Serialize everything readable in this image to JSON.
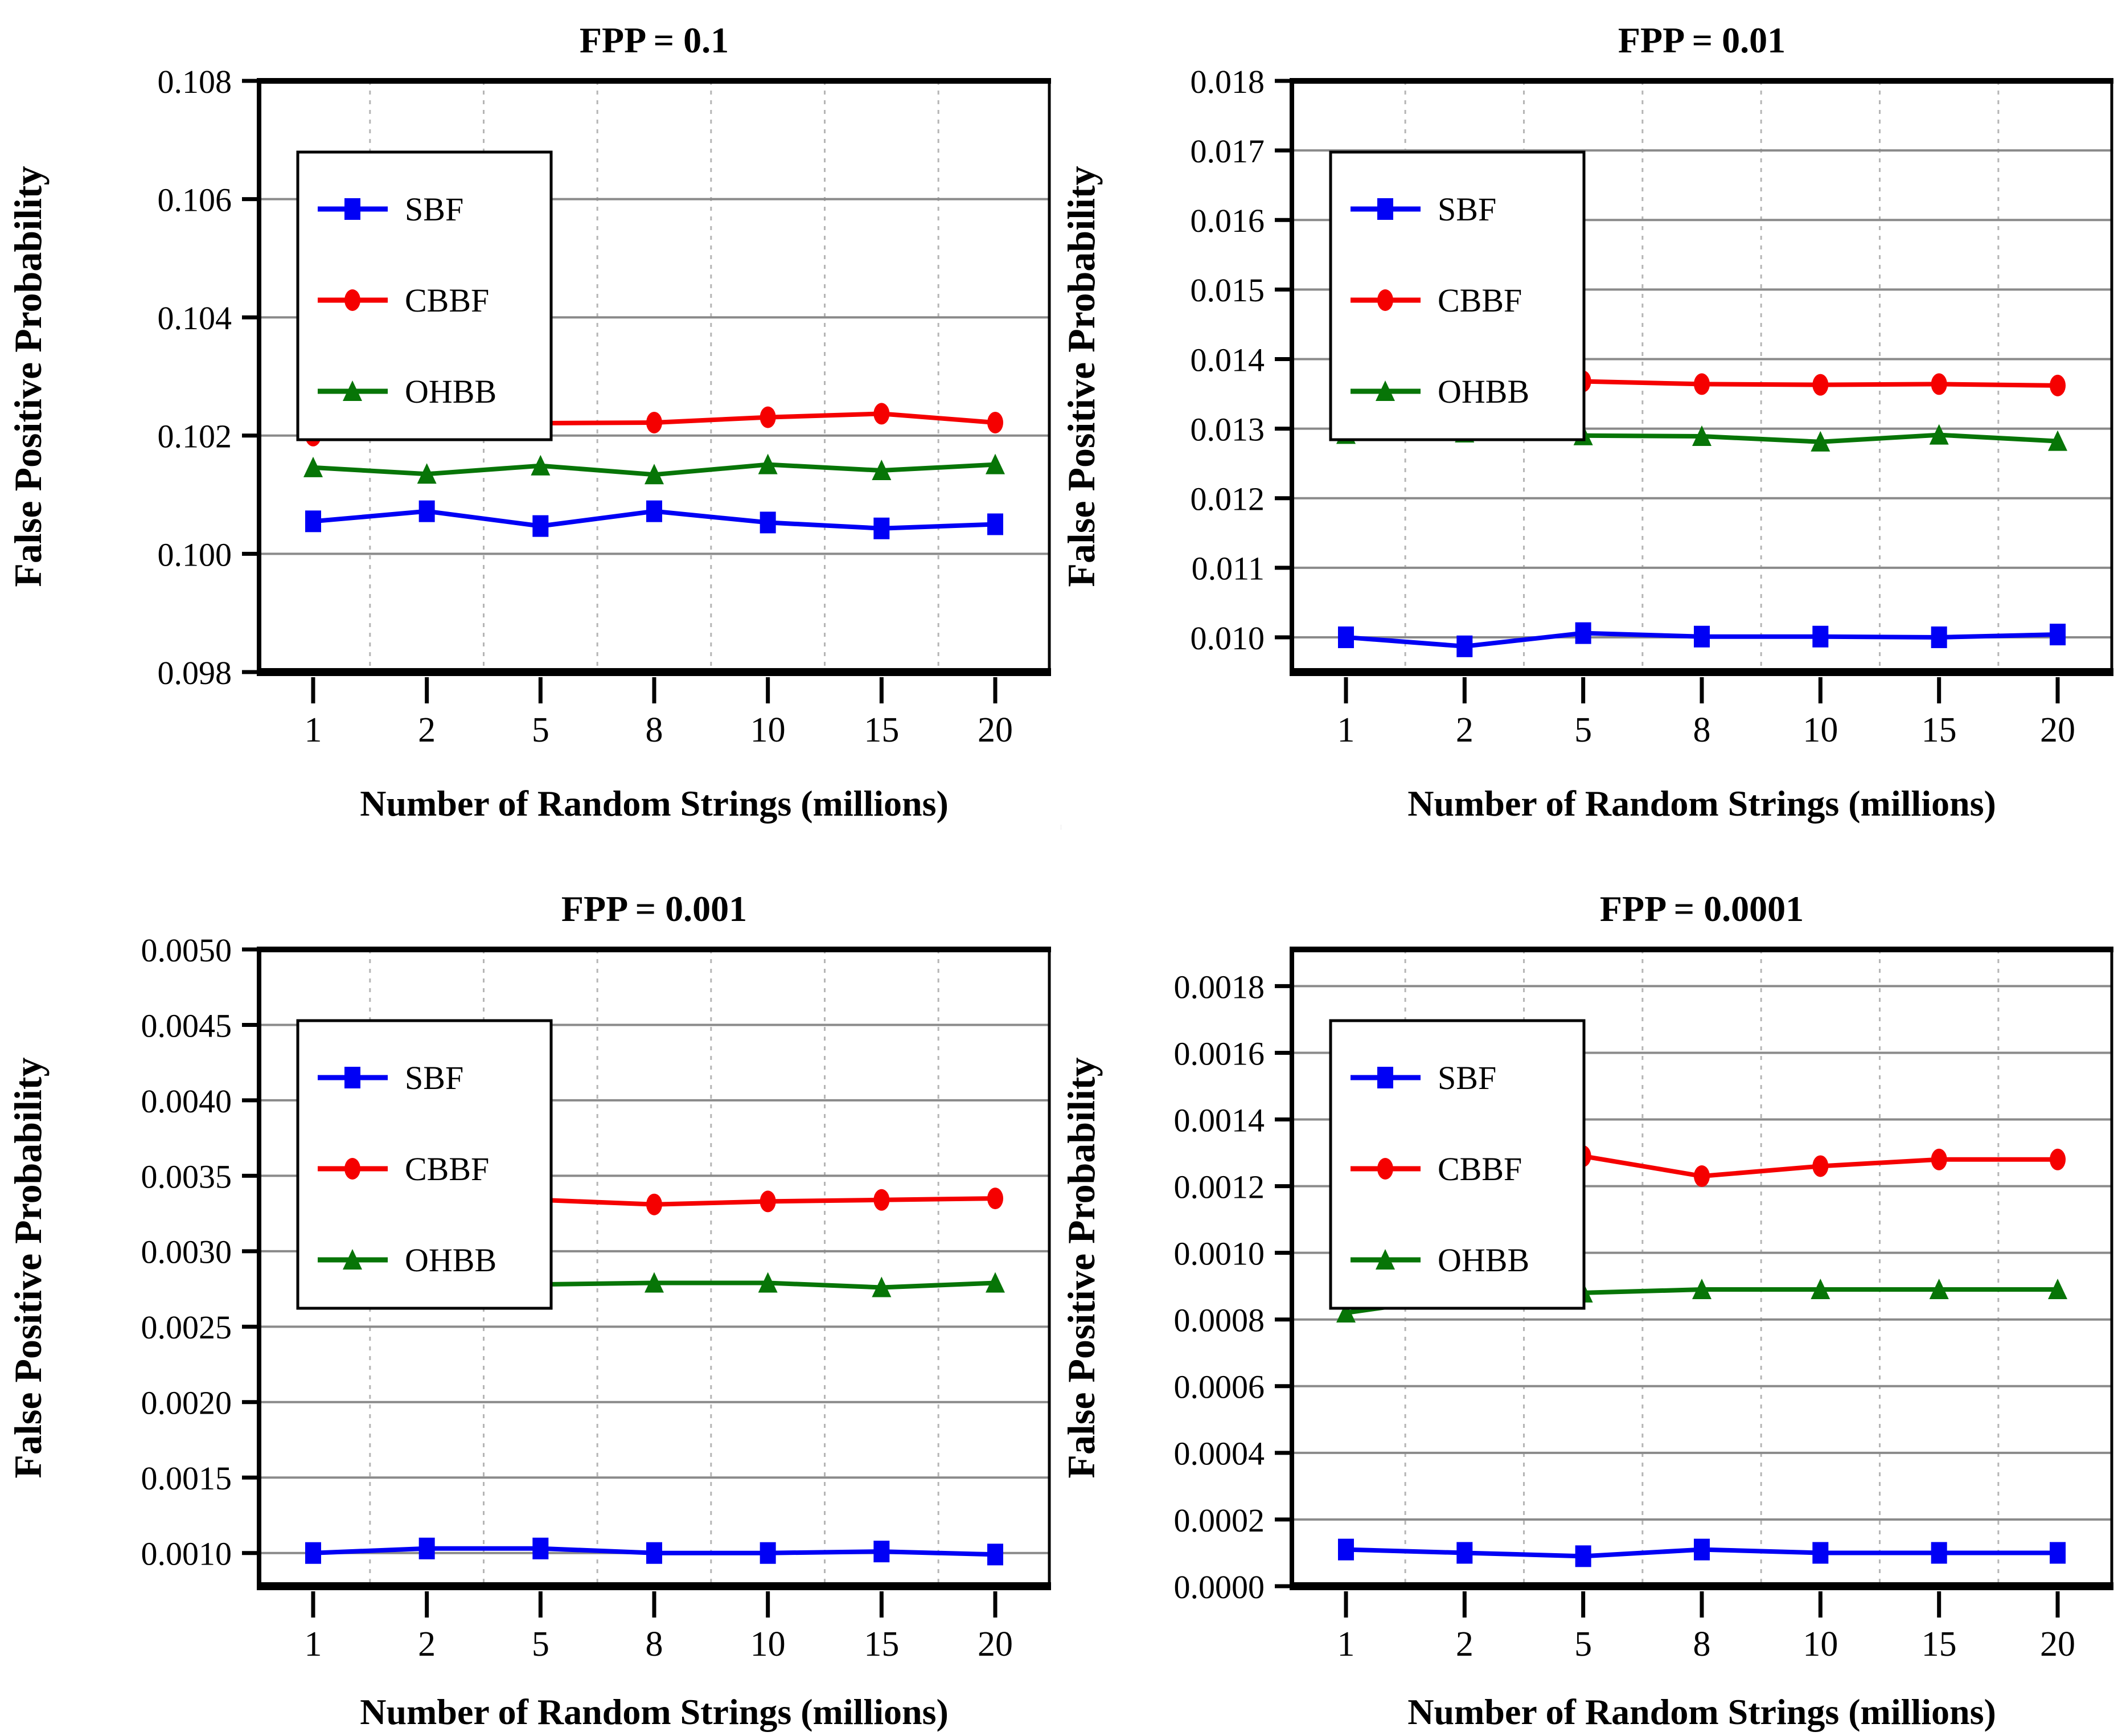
{
  "figure": {
    "background": "#ffffff",
    "divider_color": "#ebebeb",
    "xlabel": "Number of Random Strings (millions)",
    "ylabel": "False Positive Probability",
    "x_categories": [
      "1",
      "2",
      "5",
      "8",
      "10",
      "15",
      "20"
    ],
    "legend_labels": [
      "SBF",
      "CBBF",
      "OHBB"
    ],
    "colors": {
      "sbf": "#0000f5",
      "cbbf": "#f50000",
      "ohbb": "#077507",
      "grid_major": "#8a8a8a",
      "grid_minor_dashed": "#b5b5b5",
      "axis": "#000000"
    }
  },
  "chart_data": [
    {
      "type": "line",
      "title": "FPP = 0.1",
      "xlabel": "Number of Random Strings (millions)",
      "ylabel": "False Positive Probability",
      "x_categories": [
        "1",
        "2",
        "5",
        "8",
        "10",
        "15",
        "20"
      ],
      "x_values_millions": [
        1,
        2,
        5,
        8,
        10,
        15,
        20
      ],
      "ylim": [
        0.098,
        0.108
      ],
      "yticks": [
        0.098,
        0.1,
        0.102,
        0.104,
        0.106,
        0.108
      ],
      "yticklabels": [
        "0.098",
        "0.100",
        "0.102",
        "0.104",
        "0.106",
        "0.108"
      ],
      "grid": true,
      "legend_position": "upper-left",
      "series": [
        {
          "name": "SBF",
          "color": "#0000f5",
          "marker": "square",
          "values": [
            0.10055,
            0.10072,
            0.10047,
            0.10072,
            0.10053,
            0.10043,
            0.1005
          ]
        },
        {
          "name": "CBBF",
          "color": "#f50000",
          "marker": "circle",
          "values": [
            0.102,
            0.10233,
            0.10221,
            0.10222,
            0.10231,
            0.10237,
            0.10222
          ]
        },
        {
          "name": "OHBB",
          "color": "#077507",
          "marker": "triangle",
          "values": [
            0.10146,
            0.10135,
            0.10149,
            0.10134,
            0.10151,
            0.10141,
            0.10151
          ]
        }
      ]
    },
    {
      "type": "line",
      "title": "FPP = 0.01",
      "xlabel": "Number of Random Strings (millions)",
      "ylabel": "False Positive Probability",
      "x_categories": [
        "1",
        "2",
        "5",
        "8",
        "10",
        "15",
        "20"
      ],
      "x_values_millions": [
        1,
        2,
        5,
        8,
        10,
        15,
        20
      ],
      "ylim": [
        0.0095,
        0.018
      ],
      "yticks": [
        0.01,
        0.011,
        0.012,
        0.013,
        0.014,
        0.015,
        0.016,
        0.017,
        0.018
      ],
      "yticklabels": [
        "0.010",
        "0.011",
        "0.012",
        "0.013",
        "0.014",
        "0.015",
        "0.016",
        "0.017",
        "0.018"
      ],
      "grid": true,
      "legend_position": "upper-left",
      "series": [
        {
          "name": "SBF",
          "color": "#0000f5",
          "marker": "square",
          "values": [
            0.01,
            0.00987,
            0.01006,
            0.01001,
            0.01001,
            0.01,
            0.01004
          ]
        },
        {
          "name": "CBBF",
          "color": "#f50000",
          "marker": "circle",
          "values": [
            0.01355,
            0.01362,
            0.01368,
            0.01364,
            0.01363,
            0.01364,
            0.01362
          ]
        },
        {
          "name": "OHBB",
          "color": "#077507",
          "marker": "triangle",
          "values": [
            0.01292,
            0.01294,
            0.0129,
            0.01289,
            0.01281,
            0.01291,
            0.01282
          ]
        }
      ]
    },
    {
      "type": "line",
      "title": "FPP = 0.001",
      "xlabel": "Number of Random Strings (millions)",
      "ylabel": "False Positive Probability",
      "x_categories": [
        "1",
        "2",
        "5",
        "8",
        "10",
        "15",
        "20"
      ],
      "x_values_millions": [
        1,
        2,
        5,
        8,
        10,
        15,
        20
      ],
      "ylim": [
        0.00078,
        0.005
      ],
      "yticks": [
        0.001,
        0.0015,
        0.002,
        0.0025,
        0.003,
        0.0035,
        0.004,
        0.0045,
        0.005
      ],
      "yticklabels": [
        "0.0010",
        "0.0015",
        "0.0020",
        "0.0025",
        "0.0030",
        "0.0035",
        "0.0040",
        "0.0045",
        "0.0050"
      ],
      "grid": true,
      "legend_position": "upper-left",
      "series": [
        {
          "name": "SBF",
          "color": "#0000f5",
          "marker": "square",
          "values": [
            0.001,
            0.00103,
            0.00103,
            0.001,
            0.001,
            0.00101,
            0.00099
          ]
        },
        {
          "name": "CBBF",
          "color": "#f50000",
          "marker": "circle",
          "values": [
            0.00339,
            0.00338,
            0.00334,
            0.00331,
            0.00333,
            0.00334,
            0.00335
          ]
        },
        {
          "name": "OHBB",
          "color": "#077507",
          "marker": "triangle",
          "values": [
            0.0028,
            0.00278,
            0.00278,
            0.00279,
            0.00279,
            0.00276,
            0.00279
          ]
        }
      ]
    },
    {
      "type": "line",
      "title": "FPP = 0.0001",
      "xlabel": "Number of Random Strings (millions)",
      "ylabel": "False Positive Probability",
      "x_categories": [
        "1",
        "2",
        "5",
        "8",
        "10",
        "15",
        "20"
      ],
      "x_values_millions": [
        1,
        2,
        5,
        8,
        10,
        15,
        20
      ],
      "ylim": [
        0.0,
        0.00191
      ],
      "yticks": [
        0.0,
        0.0002,
        0.0004,
        0.0006,
        0.0008,
        0.001,
        0.0012,
        0.0014,
        0.0016,
        0.0018
      ],
      "yticklabels": [
        "0.0000",
        "0.0002",
        "0.0004",
        "0.0006",
        "0.0008",
        "0.0010",
        "0.0012",
        "0.0014",
        "0.0016",
        "0.0018"
      ],
      "grid": true,
      "legend_position": "upper-left",
      "series": [
        {
          "name": "SBF",
          "color": "#0000f5",
          "marker": "square",
          "values": [
            0.00011,
            0.0001,
            9e-05,
            0.00011,
            0.0001,
            0.0001,
            0.0001
          ]
        },
        {
          "name": "CBBF",
          "color": "#f50000",
          "marker": "circle",
          "values": [
            0.00126,
            0.00122,
            0.00129,
            0.00123,
            0.00126,
            0.00128,
            0.00128
          ]
        },
        {
          "name": "OHBB",
          "color": "#077507",
          "marker": "triangle",
          "values": [
            0.00082,
            0.00087,
            0.00088,
            0.00089,
            0.00089,
            0.00089,
            0.00089
          ]
        }
      ]
    }
  ]
}
